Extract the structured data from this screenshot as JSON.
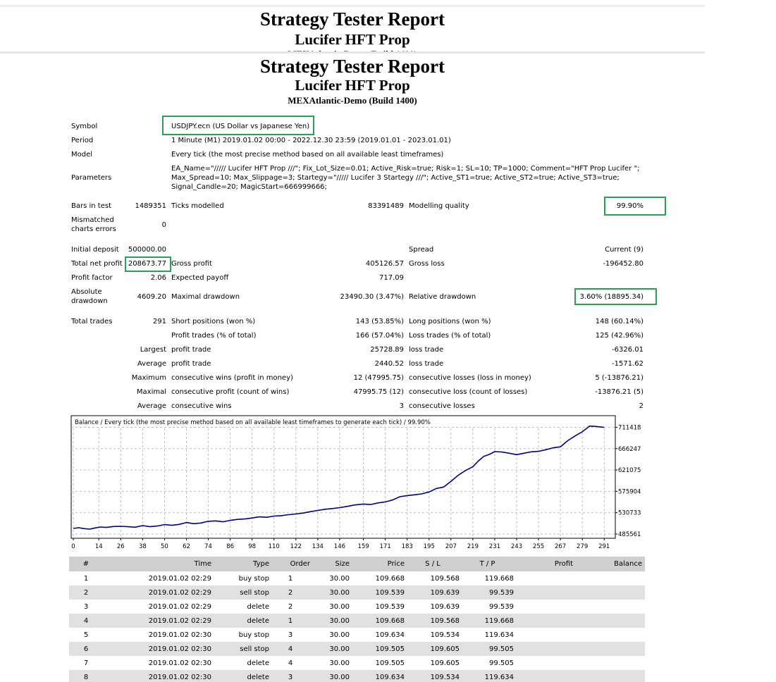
{
  "report": {
    "title": "Strategy Tester Report",
    "ea_name": "Lucifer HFT Prop",
    "server": "MEXAtlantic-Demo (Build 1400)"
  },
  "settings": {
    "symbol_label": "Symbol",
    "symbol": "USDJPY.ecn (US Dollar vs Japanese Yen)",
    "period_label": "Period",
    "period": "1 Minute (M1) 2019.01.02 00:00 - 2022.12.30 23:59 (2019.01.01 - 2023.01.01)",
    "model_label": "Model",
    "model": "Every tick (the most precise method based on all available least timeframes)",
    "parameters_label": "Parameters",
    "parameters_lines": [
      "EA_Name=\"///// Lucifer HFT Prop ///\"; Fix_Lot_Size=0.01; Active_Risk=true; Risk=1; SL=10; TP=1000; Comment=\"HFT Prop Lucifer \";",
      "Max_Spread=10; Max_Slippage=3; Startegy=\"///// Lucifer 3 Startegy ///\"; Active_ST1=true; Active_ST2=true; Active_ST3=true;",
      "Signal_Candle=20; MagicStart=666999666;"
    ]
  },
  "quality": {
    "bars_label": "Bars in test",
    "bars": "1489351",
    "ticks_label": "Ticks modelled",
    "ticks": "83391489",
    "mq_label": "Modelling quality",
    "mq": "99.90%",
    "mismatch_label_1": "Mismatched",
    "mismatch_label_2": "charts errors",
    "mismatch": "0"
  },
  "results": {
    "initial_deposit_label": "Initial deposit",
    "initial_deposit": "500000.00",
    "spread_label": "Spread",
    "spread": "Current (9)",
    "net_profit_label": "Total net profit",
    "net_profit": "208673.77",
    "gross_profit_label": "Gross profit",
    "gross_profit": "405126.57",
    "gross_loss_label": "Gross loss",
    "gross_loss": "-196452.80",
    "profit_factor_label": "Profit factor",
    "profit_factor": "2.06",
    "expected_payoff_label": "Expected payoff",
    "expected_payoff": "717.09",
    "abs_dd_label_1": "Absolute",
    "abs_dd_label_2": "drawdown",
    "abs_dd": "4609.20",
    "max_dd_label": "Maximal drawdown",
    "max_dd": "23490.30 (3.47%)",
    "rel_dd_label": "Relative drawdown",
    "rel_dd": "3.60% (18895.34)"
  },
  "trades": {
    "total_label": "Total trades",
    "total": "291",
    "short_label": "Short positions (won %)",
    "short": "143 (53.85%)",
    "long_label": "Long positions (won %)",
    "long": "148 (60.14%)",
    "profit_trades_label": "Profit trades (% of total)",
    "profit_trades": "166 (57.04%)",
    "loss_trades_label": "Loss trades (% of total)",
    "loss_trades": "125 (42.96%)",
    "largest_label": "Largest",
    "average_label": "Average",
    "maximum_label": "Maximum",
    "maximal_label": "Maximal",
    "profit_trade_label": "profit trade",
    "loss_trade_label": "loss trade",
    "largest_profit": "25728.89",
    "largest_loss": "-6326.01",
    "average_profit": "2440.52",
    "average_loss": "-1571.62",
    "cons_wins_money_label": "consecutive wins (profit in money)",
    "cons_wins_money": "12 (47995.75)",
    "cons_losses_money_label": "consecutive losses (loss in money)",
    "cons_losses_money": "5 (-13876.21)",
    "cons_profit_count_label": "consecutive profit (count of wins)",
    "cons_profit_count": "47995.75 (12)",
    "cons_loss_count_label": "consecutive loss (count of losses)",
    "cons_loss_count": "-13876.21 (5)",
    "cons_wins_label": "consecutive wins",
    "cons_wins": "3",
    "cons_losses_label": "consecutive losses",
    "cons_losses": "2"
  },
  "colors": {
    "highlight": "#2e9e57",
    "line": "#000080",
    "table_head": "#cfcfcf",
    "row_shade": "#e1e1e1"
  },
  "chart_data": {
    "type": "line",
    "title": "Balance / Every tick (the most precise method based on all available least timeframes to generate each tick) / 99.90%",
    "x_ticks": [
      0,
      14,
      26,
      38,
      50,
      62,
      74,
      86,
      98,
      110,
      122,
      134,
      146,
      159,
      171,
      183,
      195,
      207,
      219,
      231,
      243,
      255,
      267,
      279,
      291
    ],
    "y_ticks": [
      485561,
      530733,
      575904,
      621075,
      666247,
      711418
    ],
    "xlim": [
      0,
      294
    ],
    "ylim": [
      485561,
      727000
    ],
    "grid": true,
    "series": [
      {
        "x": [
          0,
          3,
          6,
          9,
          12,
          15,
          18,
          22,
          26,
          30,
          34,
          38,
          42,
          46,
          50,
          54,
          58,
          62,
          66,
          70,
          74,
          78,
          82,
          86,
          90,
          94,
          98,
          102,
          106,
          110,
          114,
          118,
          122,
          126,
          130,
          134,
          138,
          142,
          146,
          150,
          154,
          159,
          163,
          167,
          171,
          175,
          179,
          183,
          187,
          191,
          195,
          199,
          203,
          207,
          211,
          215,
          219,
          222,
          225,
          228,
          231,
          235,
          239,
          243,
          247,
          251,
          255,
          259,
          263,
          267,
          271,
          275,
          279,
          283,
          287,
          291
        ],
        "y": [
          497500,
          499000,
          497000,
          496000,
          498500,
          500500,
          499500,
          501500,
          502000,
          501000,
          500000,
          503500,
          501000,
          502500,
          505500,
          504000,
          506000,
          510000,
          507500,
          509000,
          512500,
          513500,
          511500,
          514500,
          516500,
          517500,
          519500,
          522000,
          521000,
          523500,
          524500,
          526500,
          528000,
          530000,
          533000,
          535500,
          538000,
          539500,
          541500,
          544000,
          547000,
          549000,
          548000,
          551500,
          553500,
          557500,
          564500,
          567000,
          568500,
          570500,
          574500,
          582000,
          585000,
          597000,
          610000,
          620000,
          628000,
          640000,
          650000,
          654000,
          660000,
          659000,
          656500,
          653500,
          656500,
          659500,
          660500,
          664000,
          668000,
          670000,
          683000,
          693000,
          702000,
          714000,
          713000,
          711418
        ]
      }
    ]
  },
  "table": {
    "headers": [
      "#",
      "Time",
      "Type",
      "Order",
      "Size",
      "Price",
      "S / L",
      "T / P",
      "Profit",
      "Balance"
    ],
    "rows": [
      [
        "1",
        "2019.01.02 02:29",
        "buy stop",
        "1",
        "30.00",
        "109.668",
        "109.568",
        "119.668",
        "",
        ""
      ],
      [
        "2",
        "2019.01.02 02:29",
        "sell stop",
        "2",
        "30.00",
        "109.539",
        "109.639",
        "99.539",
        "",
        ""
      ],
      [
        "3",
        "2019.01.02 02:29",
        "delete",
        "2",
        "30.00",
        "109.539",
        "109.639",
        "99.539",
        "",
        ""
      ],
      [
        "4",
        "2019.01.02 02:29",
        "delete",
        "1",
        "30.00",
        "109.668",
        "109.568",
        "119.668",
        "",
        ""
      ],
      [
        "5",
        "2019.01.02 02:30",
        "buy stop",
        "3",
        "30.00",
        "109.634",
        "109.534",
        "119.634",
        "",
        ""
      ],
      [
        "6",
        "2019.01.02 02:30",
        "sell stop",
        "4",
        "30.00",
        "109.505",
        "109.605",
        "99.505",
        "",
        ""
      ],
      [
        "7",
        "2019.01.02 02:30",
        "delete",
        "4",
        "30.00",
        "109.505",
        "109.605",
        "99.505",
        "",
        ""
      ],
      [
        "8",
        "2019.01.02 02:30",
        "delete",
        "3",
        "30.00",
        "109.634",
        "109.534",
        "119.634",
        "",
        ""
      ]
    ]
  }
}
